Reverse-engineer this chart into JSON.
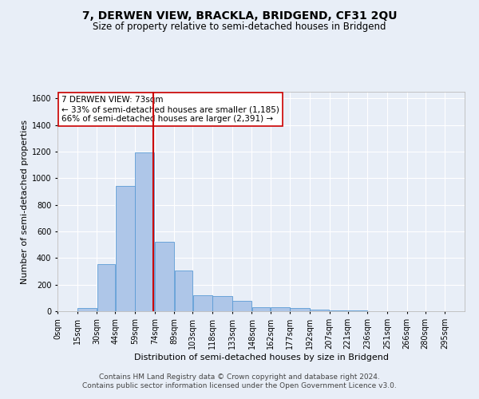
{
  "title": "7, DERWEN VIEW, BRACKLA, BRIDGEND, CF31 2QU",
  "subtitle": "Size of property relative to semi-detached houses in Bridgend",
  "xlabel": "Distribution of semi-detached houses by size in Bridgend",
  "ylabel": "Number of semi-detached properties",
  "footer_line1": "Contains HM Land Registry data © Crown copyright and database right 2024.",
  "footer_line2": "Contains public sector information licensed under the Open Government Licence v3.0.",
  "annotation_title": "7 DERWEN VIEW: 73sqm",
  "annotation_line1": "← 33% of semi-detached houses are smaller (1,185)",
  "annotation_line2": "66% of semi-detached houses are larger (2,391) →",
  "bar_left_edges": [
    0,
    15,
    30,
    44,
    59,
    74,
    89,
    103,
    118,
    133,
    148,
    162,
    177,
    192,
    207,
    221,
    236,
    251,
    266,
    280
  ],
  "bar_widths": [
    15,
    15,
    14,
    15,
    15,
    15,
    14,
    15,
    15,
    15,
    14,
    15,
    15,
    15,
    14,
    15,
    15,
    15,
    14,
    15
  ],
  "bar_heights": [
    0,
    25,
    355,
    940,
    1195,
    520,
    305,
    120,
    115,
    80,
    30,
    28,
    22,
    15,
    8,
    5,
    2,
    2,
    0,
    0
  ],
  "bar_color": "#aec6e8",
  "bar_edge_color": "#5b9bd5",
  "marker_x": 73,
  "marker_color": "#cc0000",
  "ylim": [
    0,
    1650
  ],
  "yticks": [
    0,
    200,
    400,
    600,
    800,
    1000,
    1200,
    1400,
    1600
  ],
  "xlim": [
    0,
    310
  ],
  "bg_color": "#e8eef7",
  "grid_color": "#ffffff",
  "title_fontsize": 10,
  "subtitle_fontsize": 8.5,
  "axis_label_fontsize": 8,
  "tick_fontsize": 7,
  "annotation_fontsize": 7.5,
  "footer_fontsize": 6.5
}
